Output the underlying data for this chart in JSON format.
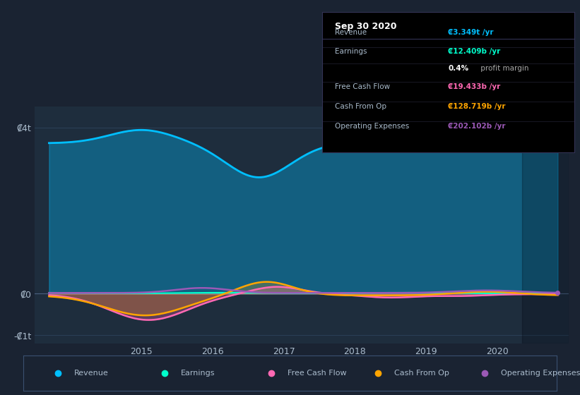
{
  "background_color": "#1a2332",
  "plot_bg_color": "#1e2d3d",
  "grid_color": "#2a3f55",
  "text_color": "#aabbcc",
  "title_color": "#ffffff",
  "revenue_color": "#00bfff",
  "earnings_color": "#00ffcc",
  "free_cash_flow_color": "#ff69b4",
  "cash_from_op_color": "#ffa500",
  "op_expenses_color": "#9b59b6",
  "legend_items": [
    "Revenue",
    "Earnings",
    "Free Cash Flow",
    "Cash From Op",
    "Operating Expenses"
  ],
  "legend_colors": [
    "#00bfff",
    "#00ffcc",
    "#ff69b4",
    "#ffa500",
    "#9b59b6"
  ],
  "xlabel_years": [
    2015,
    2016,
    2017,
    2018,
    2019,
    2020
  ],
  "ytick_vals": [
    -1000000000000.0,
    0,
    4000000000000.0
  ],
  "ytick_labels": [
    "-₡1t",
    "₡0",
    "₡4t"
  ],
  "xlim": [
    2013.5,
    2021.0
  ],
  "ylim": [
    -1200000000000.0,
    4500000000000.0
  ]
}
